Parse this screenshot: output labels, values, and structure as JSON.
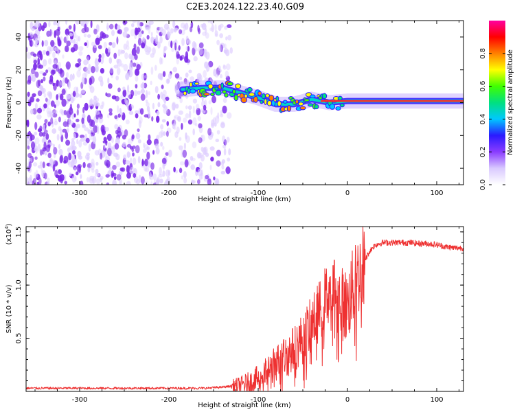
{
  "title": "C2E3.2024.122.23.40.G09",
  "colors": {
    "snr_line": "#ee3030",
    "spec_low": "#ddccff",
    "spec_mid": "#7a28e8",
    "colorbar": [
      "#ffffff",
      "#d9c9ff",
      "#8a3cff",
      "#2a1aff",
      "#00c8ff",
      "#00e080",
      "#40ff00",
      "#ffff00",
      "#ff8000",
      "#ff0000",
      "#ff00a0"
    ]
  },
  "chart_data": [
    {
      "type": "heatmap",
      "title": "C2E3.2024.122.23.40.G09",
      "xlabel": "Height of straight line (km)",
      "ylabel": "Frequency (Hz)",
      "xlim": [
        -360,
        130
      ],
      "ylim": [
        -50,
        50
      ],
      "xticks": [
        -300,
        -200,
        -100,
        0,
        100
      ],
      "yticks": [
        -40,
        -20,
        0,
        20,
        40
      ],
      "signal_track": {
        "x": [
          -185,
          -160,
          -140,
          -120,
          -100,
          -80,
          -60,
          -40,
          -20,
          0,
          20,
          50,
          100,
          130
        ],
        "y": [
          8,
          9,
          9,
          6,
          3,
          -1,
          -1,
          2,
          0,
          1,
          1,
          1,
          1,
          1
        ]
      },
      "noise_extent_x": [
        -360,
        -130
      ],
      "colorbar": {
        "label": "Normalized spectral amplitude",
        "range": [
          0.0,
          1.0
        ],
        "ticks": [
          0.0,
          0.2,
          0.4,
          0.6,
          0.8
        ]
      },
      "grid": false
    },
    {
      "type": "line",
      "xlabel": "Height of straight line (km)",
      "ylabel": "SNR (10 * v/v)",
      "y_multiplier_label": "(x10",
      "y_multiplier_exp": "4",
      "xlim": [
        -360,
        130
      ],
      "ylim": [
        0,
        1.55
      ],
      "xticks": [
        -300,
        -200,
        -100,
        0,
        100
      ],
      "yticks": [
        0.5,
        1.0,
        1.5
      ],
      "ytick_labels": [
        "0.5",
        "1.0",
        "1.5"
      ],
      "series": [
        {
          "x": [
            -360,
            -300,
            -250,
            -200,
            -160,
            -140,
            -120,
            -110,
            -100,
            -90,
            -80,
            -70,
            -60,
            -50,
            -40,
            -30,
            -25,
            -20,
            -15,
            -10,
            -5,
            0,
            5,
            10,
            15,
            20,
            25,
            30,
            35,
            40,
            50,
            60,
            70,
            80,
            90,
            100,
            110,
            120,
            130
          ],
          "y": [
            0.03,
            0.03,
            0.03,
            0.03,
            0.03,
            0.04,
            0.06,
            0.08,
            0.12,
            0.18,
            0.27,
            0.33,
            0.4,
            0.5,
            0.63,
            0.78,
            0.88,
            0.95,
            0.98,
            0.88,
            0.82,
            0.8,
            0.95,
            1.05,
            1.15,
            1.24,
            1.32,
            1.37,
            1.39,
            1.4,
            1.4,
            1.4,
            1.4,
            1.39,
            1.39,
            1.38,
            1.36,
            1.35,
            1.35
          ]
        }
      ],
      "grid": false
    }
  ]
}
